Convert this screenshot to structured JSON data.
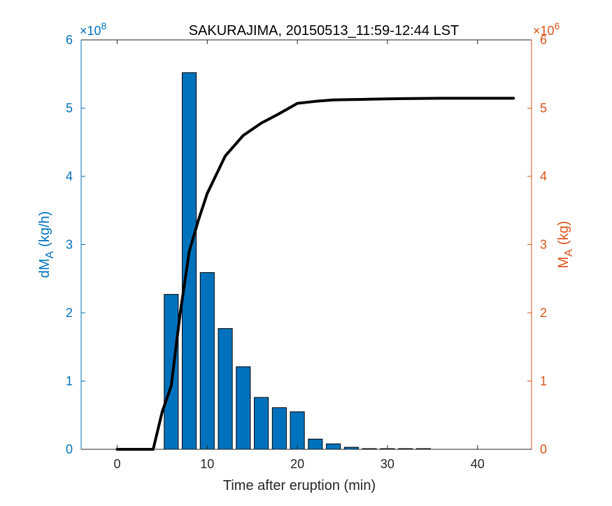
{
  "chart_data": {
    "type": "bar",
    "title": "SAKURAJIMA, 20150513_11:59-12:44 LST",
    "xlabel": "Time after eruption (min)",
    "xlim": [
      -4,
      46
    ],
    "x_ticks": [
      0,
      10,
      20,
      30,
      40
    ],
    "grid": false,
    "left_axis": {
      "label_main": "dM",
      "label_sub": "A",
      "label_unit": "(kg/h)",
      "exponent": "×10^8",
      "exponent_base": "×10",
      "exponent_power": "8",
      "ylim": [
        0,
        6
      ],
      "ticks": [
        0,
        1,
        2,
        3,
        4,
        5,
        6
      ],
      "color": "#0072BD"
    },
    "right_axis": {
      "label_main": "M",
      "label_sub": "A",
      "label_unit": "(kg)",
      "exponent": "×10^6",
      "exponent_base": "×10",
      "exponent_power": "6",
      "ylim": [
        0,
        6
      ],
      "ticks": [
        0,
        1,
        2,
        3,
        4,
        5,
        6
      ],
      "color": "#D95319"
    },
    "series": [
      {
        "kind": "bar",
        "axis": "left",
        "color": "#0072BD",
        "x": [
          0,
          2,
          4,
          6,
          8,
          10,
          12,
          14,
          16,
          18,
          20,
          22,
          24,
          26,
          28,
          30,
          32,
          34,
          36,
          38,
          40,
          42,
          44
        ],
        "values": [
          0,
          0,
          0,
          2.27,
          5.52,
          2.59,
          1.77,
          1.21,
          0.76,
          0.61,
          0.55,
          0.15,
          0.08,
          0.03,
          0.01,
          0.01,
          0.01,
          0.01,
          0,
          0,
          0,
          0,
          0
        ]
      },
      {
        "kind": "line",
        "axis": "right",
        "color": "#000000",
        "x": [
          0,
          2,
          4,
          5,
          6,
          7,
          8,
          9,
          10,
          12,
          14,
          16,
          18,
          20,
          22,
          24,
          26,
          28,
          30,
          32,
          34,
          36,
          38,
          40,
          42,
          44
        ],
        "values": [
          0,
          0,
          0,
          0.55,
          0.93,
          2.0,
          2.9,
          3.35,
          3.75,
          4.3,
          4.6,
          4.78,
          4.92,
          5.07,
          5.1,
          5.12,
          5.125,
          5.13,
          5.135,
          5.14,
          5.143,
          5.145,
          5.145,
          5.145,
          5.145,
          5.145
        ]
      }
    ]
  }
}
